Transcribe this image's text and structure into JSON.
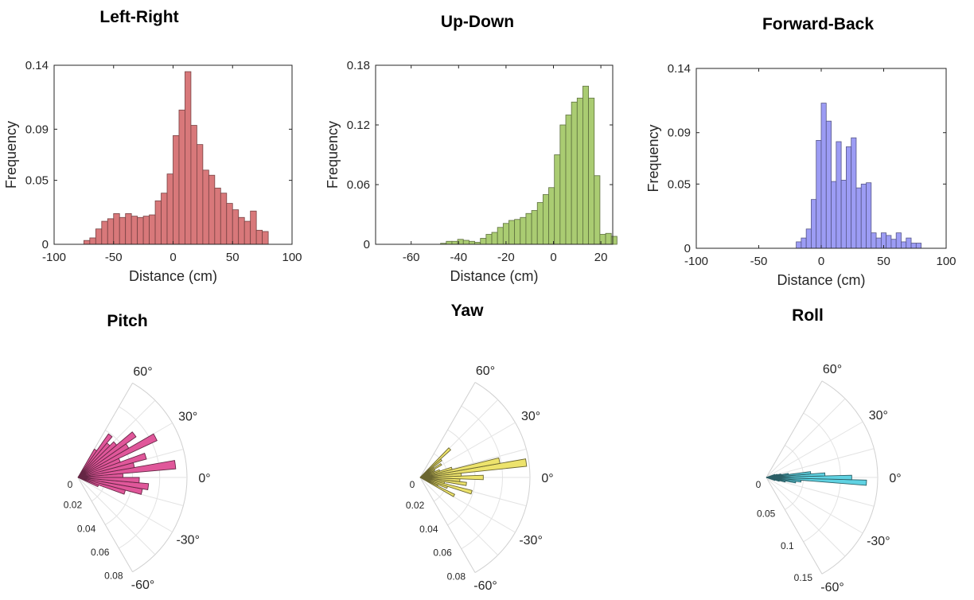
{
  "chart_data": [
    {
      "type": "bar",
      "title": "Left-Right",
      "xlabel": "Distance (cm)",
      "ylabel": "Frequency",
      "xlim": [
        -100,
        100
      ],
      "ylim": [
        0,
        0.14
      ],
      "xticks": [
        "-100",
        "-50",
        "0",
        "50",
        "100"
      ],
      "yticks": [
        "0",
        "0.05",
        "0.09",
        "0.14"
      ],
      "bin_width": 5,
      "bin_start": -75,
      "values": [
        0.003,
        0.005,
        0.012,
        0.018,
        0.02,
        0.024,
        0.021,
        0.024,
        0.022,
        0.021,
        0.022,
        0.023,
        0.034,
        0.04,
        0.055,
        0.085,
        0.105,
        0.135,
        0.093,
        0.078,
        0.058,
        0.054,
        0.044,
        0.04,
        0.032,
        0.027,
        0.021,
        0.018,
        0.026,
        0.011,
        0.01
      ],
      "color": "#d8787a",
      "grid": false
    },
    {
      "type": "bar",
      "title": "Up-Down",
      "xlabel": "Distance (cm)",
      "ylabel": "Frequency",
      "xlim": [
        -75,
        25
      ],
      "ylim": [
        0,
        0.18
      ],
      "xticks": [
        "-60",
        "-40",
        "-20",
        "0",
        "20"
      ],
      "yticks": [
        "0",
        "0.06",
        "0.12",
        "0.18"
      ],
      "bin_width": 2.4,
      "bin_start": -47.6,
      "values": [
        0.001,
        0.003,
        0.003,
        0.005,
        0.004,
        0.003,
        0.002,
        0.006,
        0.01,
        0.012,
        0.017,
        0.021,
        0.024,
        0.025,
        0.027,
        0.031,
        0.034,
        0.042,
        0.05,
        0.057,
        0.09,
        0.12,
        0.13,
        0.143,
        0.147,
        0.159,
        0.147,
        0.069,
        0.01,
        0.011,
        0.008
      ],
      "color": "#aacc72",
      "grid": false
    },
    {
      "type": "bar",
      "title": "Forward-Back",
      "xlabel": "Distance (cm)",
      "ylabel": "Frequency",
      "xlim": [
        -100,
        100
      ],
      "ylim": [
        0,
        0.14
      ],
      "xticks": [
        "-100",
        "-50",
        "0",
        "50",
        "100"
      ],
      "yticks": [
        "0",
        "0.05",
        "0.09",
        "0.14"
      ],
      "bin_width": 4,
      "bin_start": -20,
      "values": [
        0.005,
        0.008,
        0.015,
        0.038,
        0.084,
        0.113,
        0.099,
        0.052,
        0.083,
        0.053,
        0.079,
        0.086,
        0.047,
        0.05,
        0.051,
        0.012,
        0.008,
        0.012,
        0.01,
        0.007,
        0.012,
        0.005,
        0.008,
        0.004,
        0.004
      ],
      "color": "#9c9cf4",
      "grid": false
    },
    {
      "type": "polar-histogram",
      "title": "Pitch",
      "theta_range_deg": [
        -60,
        60
      ],
      "theta_ticks": [
        "60°",
        "30°",
        "0°",
        "-30°",
        "-60°"
      ],
      "rlim": [
        0,
        0.08
      ],
      "r_ticks": [
        "0",
        "0.02",
        "0.04",
        "0.06",
        "0.08"
      ],
      "bin_width_deg": 5,
      "bin_start_deg": -25,
      "values": [
        0.016,
        0.036,
        0.048,
        0.052,
        0.045,
        0.033,
        0.072,
        0.042,
        0.052,
        0.033,
        0.064,
        0.043,
        0.052,
        0.037,
        0.033,
        0.039,
        0.024
      ],
      "color": "#e0579a"
    },
    {
      "type": "polar-histogram",
      "title": "Yaw",
      "theta_range_deg": [
        -60,
        60
      ],
      "theta_ticks": [
        "60°",
        "30°",
        "0°",
        "-30°",
        "-60°"
      ],
      "rlim": [
        0,
        0.08
      ],
      "r_ticks": [
        "0",
        "0.02",
        "0.04",
        "0.06",
        "0.08"
      ],
      "bin_width_deg": 4,
      "bin_start_deg": -30,
      "values": [
        0.028,
        0.014,
        0.021,
        0.039,
        0.018,
        0.034,
        0.029,
        0.046,
        0.03,
        0.078,
        0.059,
        0.024,
        0.015,
        0.011,
        0.012,
        0.018,
        0.012,
        0.02,
        0.03
      ],
      "color": "#ede36c"
    },
    {
      "type": "polar-histogram",
      "title": "Roll",
      "theta_range_deg": [
        -60,
        60
      ],
      "theta_ticks": [
        "60°",
        "30°",
        "0°",
        "-30°",
        "-60°"
      ],
      "rlim": [
        0,
        0.15
      ],
      "r_ticks": [
        "0",
        "0.05",
        "0.1",
        "0.15"
      ],
      "bin_width_deg": 3,
      "bin_start_deg": -19.5,
      "values": [
        0.012,
        0.018,
        0.026,
        0.04,
        0.047,
        0.135,
        0.115,
        0.079,
        0.06,
        0.03,
        0.02,
        0.015,
        0.012
      ],
      "color": "#5fd2e2"
    }
  ]
}
